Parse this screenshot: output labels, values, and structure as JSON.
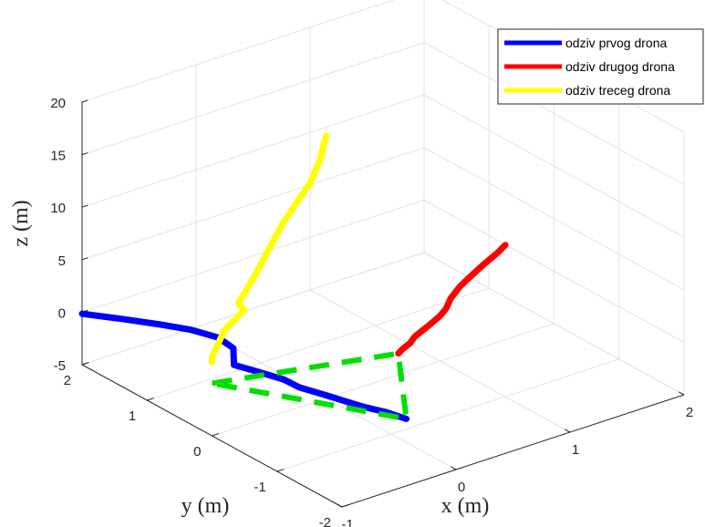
{
  "chart_data": {
    "type": "line",
    "title": "",
    "xlabel": "x (m)",
    "ylabel": "y (m)",
    "zlabel": "z (m)",
    "xlim": [
      -1,
      2
    ],
    "ylim": [
      -2,
      2
    ],
    "zlim": [
      -5,
      20
    ],
    "xticks": [
      "-1",
      "0",
      "1",
      "2"
    ],
    "yticks": [
      "-2",
      "-1",
      "0",
      "1",
      "2"
    ],
    "zticks": [
      "-5",
      "0",
      "5",
      "10",
      "15",
      "20"
    ],
    "grid": true,
    "legend_position": "top-right",
    "series": [
      {
        "name": "odziv prvog drona",
        "color": "#0000ff",
        "points": [
          [
            -1.0,
            2.0,
            -0.15
          ],
          [
            -0.8,
            1.75,
            -0.5
          ],
          [
            -0.6,
            1.5,
            -0.9
          ],
          [
            -0.45,
            1.3,
            -1.25
          ],
          [
            -0.35,
            1.05,
            -1.5
          ],
          [
            -0.3,
            0.9,
            -2.2
          ],
          [
            -0.38,
            0.75,
            -3.0
          ],
          [
            -0.3,
            0.55,
            -3.2
          ],
          [
            -0.2,
            0.3,
            -3.5
          ],
          [
            -0.12,
            0.2,
            -4.2
          ],
          [
            0.0,
            0.0,
            -4.7
          ],
          [
            0.1,
            -0.4,
            -4.8
          ],
          [
            0.18,
            -0.6,
            -4.9
          ],
          [
            0.22,
            -0.85,
            -4.85
          ]
        ]
      },
      {
        "name": "odziv drugog drona",
        "color": "#ff0000",
        "points": [
          [
            2.0,
            0.75,
            -0.05
          ],
          [
            1.9,
            0.7,
            -0.3
          ],
          [
            1.75,
            0.65,
            -0.7
          ],
          [
            1.6,
            0.6,
            -1.2
          ],
          [
            1.5,
            0.57,
            -1.6
          ],
          [
            1.4,
            0.54,
            -2.3
          ],
          [
            1.35,
            0.52,
            -3.0
          ],
          [
            1.28,
            0.49,
            -3.35
          ],
          [
            1.15,
            0.44,
            -3.65
          ],
          [
            1.0,
            0.39,
            -4.0
          ],
          [
            0.95,
            0.37,
            -4.35
          ],
          [
            0.87,
            0.34,
            -4.5
          ],
          [
            0.81,
            0.31,
            -4.65
          ]
        ]
      },
      {
        "name": "odziv treceg drona",
        "color": "#ffff00",
        "points": [
          [
            0.0,
            0.0,
            20.0
          ],
          [
            -0.05,
            0.0,
            18.0
          ],
          [
            -0.14,
            0.0,
            16.0
          ],
          [
            -0.24,
            0.0,
            14.8
          ],
          [
            -0.38,
            0.0,
            13.0
          ],
          [
            -0.5,
            0.0,
            11.0
          ],
          [
            -0.62,
            0.0,
            9.0
          ],
          [
            -0.72,
            0.0,
            7.5
          ],
          [
            -0.77,
            0.0,
            6.8
          ],
          [
            -0.72,
            0.0,
            6.0
          ],
          [
            -0.79,
            0.0,
            5.4
          ],
          [
            -0.89,
            0.0,
            4.7
          ],
          [
            -0.95,
            0.0,
            3.5
          ],
          [
            -1.0,
            0.0,
            2.5
          ],
          [
            -1.0,
            0.0,
            2.0
          ]
        ]
      },
      {
        "name": "",
        "color": "#00e000",
        "style": "dashed",
        "points": [
          [
            -1.0,
            0.0,
            0.0
          ],
          [
            0.81,
            0.31,
            -4.65
          ],
          [
            0.22,
            -0.85,
            -4.85
          ],
          [
            -1.0,
            0.0,
            0.0
          ]
        ]
      }
    ]
  }
}
